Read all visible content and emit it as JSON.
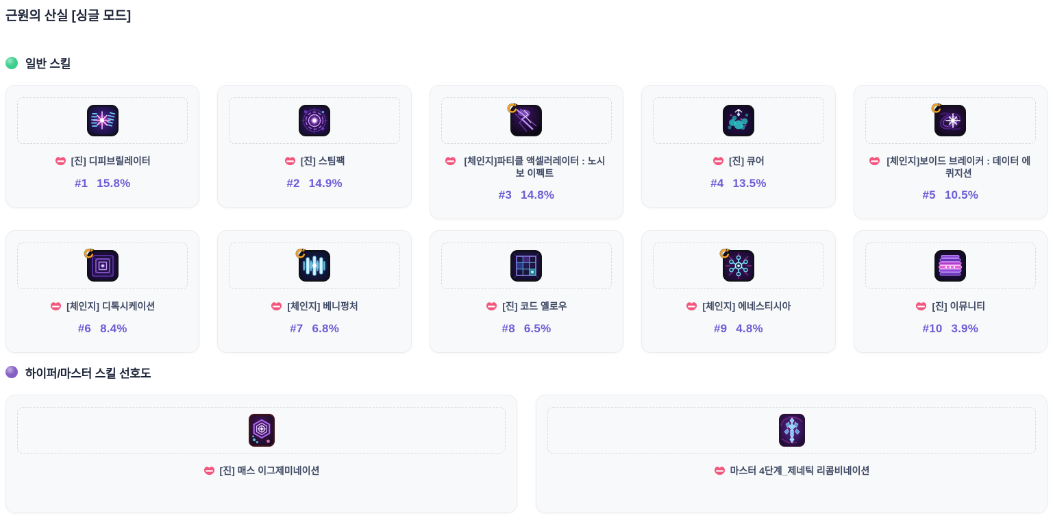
{
  "page": {
    "title": "근원의 산실 [싱글 모드]"
  },
  "colors": {
    "accent_purple": "#6c5dd6",
    "lips_pink": "#f2577d",
    "change_arrow_orange": "#f5a41e",
    "normal_dot_green": "#3ecf8e",
    "hyper_dot_purple": "#8661c5",
    "card_background": "#f8f9fa"
  },
  "sections": [
    {
      "label": "일반 스킬",
      "dot_color": "#3ecf8e",
      "layout": "grid-5",
      "cards": [
        {
          "icon": "defibrillator",
          "name": "[진] 디피브릴레이터",
          "rank": "#1",
          "share": "15.8%",
          "change_badge": false
        },
        {
          "icon": "steampack",
          "name": "[진] 스팀팩",
          "rank": "#2",
          "share": "14.9%",
          "change_badge": false
        },
        {
          "icon": "particle-accelerator",
          "name": "[체인지]파티클 액셀러레이터 : 노시보 이펙트",
          "rank": "#3",
          "share": "14.8%",
          "change_badge": true
        },
        {
          "icon": "cure",
          "name": "[진] 큐어",
          "rank": "#4",
          "share": "13.5%",
          "change_badge": false
        },
        {
          "icon": "void-breaker",
          "name": "[체인지]보이드 브레이커 : 데이터 에퀴지션",
          "rank": "#5",
          "share": "10.5%",
          "change_badge": true
        },
        {
          "icon": "detoxication",
          "name": "[체인지] 디톡시케이션",
          "rank": "#6",
          "share": "8.4%",
          "change_badge": true
        },
        {
          "icon": "venipuncture",
          "name": "[체인지] 베니펑처",
          "rank": "#7",
          "share": "6.8%",
          "change_badge": true
        },
        {
          "icon": "code-yellow",
          "name": "[진] 코드 옐로우",
          "rank": "#8",
          "share": "6.5%",
          "change_badge": false
        },
        {
          "icon": "anesthesia",
          "name": "[체인지] 에네스티시아",
          "rank": "#9",
          "share": "4.8%",
          "change_badge": true
        },
        {
          "icon": "immunity",
          "name": "[진] 이뮤니티",
          "rank": "#10",
          "share": "3.9%",
          "change_badge": false
        }
      ]
    },
    {
      "label": "하이퍼/마스터 스킬 선호도",
      "dot_color": "#8661c5",
      "layout": "grid-2",
      "cards": [
        {
          "icon": "mass-examination",
          "name": "[진] 매스 이그제미네이션",
          "change_badge": false
        },
        {
          "icon": "genetic-recombination",
          "name": "마스터 4단계_제네틱 리콤비네이션",
          "change_badge": false
        }
      ]
    }
  ]
}
